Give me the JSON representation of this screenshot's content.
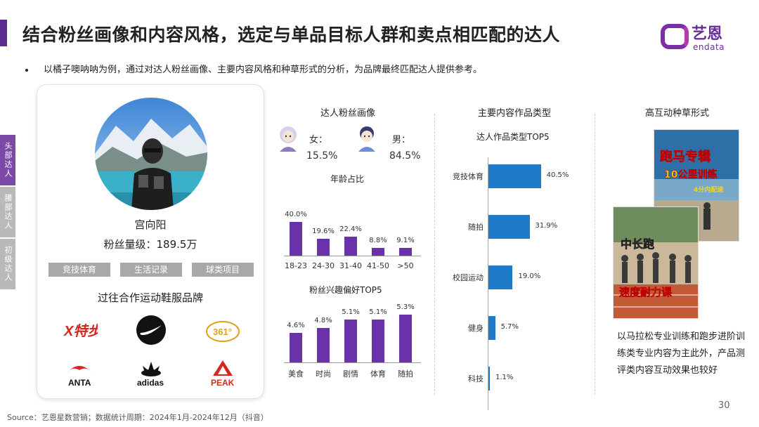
{
  "header": {
    "title": "结合粉丝画像和内容风格，选定与单品目标人群和卖点相匹配的达人",
    "subtitle": "以橘子噢呐呐为例，通过对达人粉丝画像、主要内容风格和种草形式的分析，为品牌最终匹配达人提供参考。",
    "logo_cn": "艺恩",
    "logo_en": "endata"
  },
  "side_tabs": [
    "头部达人",
    "腰部达人",
    "初级达人"
  ],
  "influencer": {
    "name": "宫向阳",
    "fans_label": "粉丝量级：189.5万",
    "tags": [
      "竞技体育",
      "生活记录",
      "球类项目"
    ],
    "brands_title": "过往合作运动鞋服品牌",
    "brands": [
      {
        "icon": "xtep-logo",
        "text": "X特步"
      },
      {
        "icon": "nike-logo",
        "text": ""
      },
      {
        "icon": "361-logo",
        "text": "361°"
      },
      {
        "icon": "anta-logo",
        "text": "ANTA"
      },
      {
        "icon": "adidas-logo",
        "text": "adidas"
      },
      {
        "icon": "peak-logo",
        "text": "PEAK"
      }
    ]
  },
  "fan_profile": {
    "title": "达人粉丝画像",
    "female_label": "女：",
    "female_value": "15.5%",
    "male_label": "男：",
    "male_value": "84.5%"
  },
  "chart_data": [
    {
      "type": "bar",
      "title": "年龄占比",
      "categories": [
        "18-23",
        "24-30",
        "31-40",
        "41-50",
        ">50"
      ],
      "values": [
        40.0,
        19.6,
        22.4,
        8.8,
        9.1
      ],
      "value_labels": [
        "40.0%",
        "19.6%",
        "22.4%",
        "8.8%",
        "9.1%"
      ],
      "ylim": [
        0,
        45
      ],
      "color": "#6a32a8"
    },
    {
      "type": "bar",
      "title": "粉丝兴趣偏好TOP5",
      "categories": [
        "美食",
        "时尚",
        "剧情",
        "体育",
        "随拍"
      ],
      "values": [
        4.6,
        4.8,
        5.1,
        5.1,
        5.3
      ],
      "value_labels": [
        "4.6%",
        "4.8%",
        "5.1%",
        "5.1%",
        "5.3%"
      ],
      "ylim": [
        3.5,
        5.5
      ],
      "color": "#6a32a8"
    },
    {
      "type": "bar",
      "orientation": "horizontal",
      "title": "达人作品类型TOP5",
      "categories": [
        "竞技体育",
        "随拍",
        "校园运动",
        "健身",
        "科技"
      ],
      "values": [
        40.5,
        31.9,
        19.0,
        5.7,
        1.1
      ],
      "value_labels": [
        "40.5%",
        "31.9%",
        "19.0%",
        "5.7%",
        "1.1%"
      ],
      "xlim": [
        0,
        45
      ],
      "color": "#1f7ac7"
    }
  ],
  "content_section": {
    "title": "主要内容作品类型"
  },
  "interaction_section": {
    "title": "高互动种草形式",
    "photo1_caption_line1": "跑马专辑",
    "photo1_caption_line2": "10公里训练",
    "photo1_caption_line3": "4分内配速",
    "photo2_caption_line1": "中长跑",
    "photo2_caption_line2": "速度耐力课",
    "description": "以马拉松专业训练和跑步进阶训练类专业内容为主此外，产品测评类内容互动效果也较好"
  },
  "footer": {
    "source": "Source：艺恩星数营销；数据统计周期：2024年1月-2024年12月（抖音）",
    "page": "30"
  }
}
